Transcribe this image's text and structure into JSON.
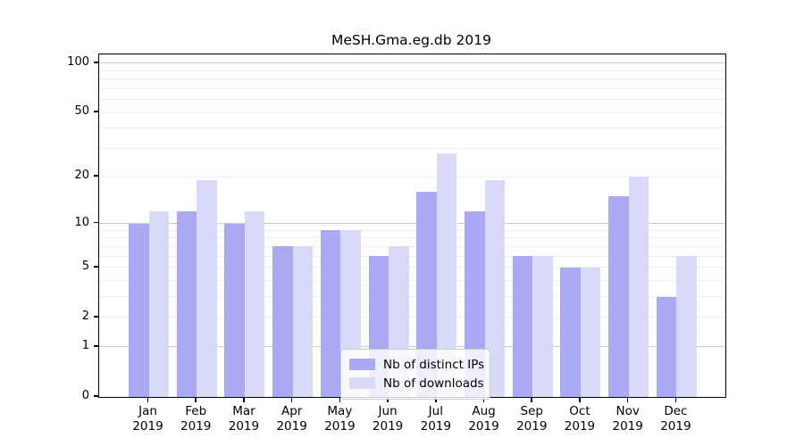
{
  "chart_data": {
    "type": "bar",
    "title": "MeSH.Gma.eg.db 2019",
    "categories": [
      "Jan",
      "Feb",
      "Mar",
      "Apr",
      "May",
      "Jun",
      "Jul",
      "Aug",
      "Sep",
      "Oct",
      "Nov",
      "Dec"
    ],
    "xtick_year": "2019",
    "series": [
      {
        "name": "Nb of distinct IPs",
        "color": "#a9a9f4",
        "values": [
          10,
          12,
          10,
          7,
          9,
          6,
          16,
          12,
          6,
          5,
          15,
          3
        ]
      },
      {
        "name": "Nb of downloads",
        "color": "#d9d9f8",
        "values": [
          12,
          19,
          12,
          7,
          9,
          7,
          28,
          19,
          6,
          5,
          20,
          6
        ]
      }
    ],
    "xlabel": "",
    "ylabel": "",
    "yscale": "log1p",
    "ylim": [
      0,
      113
    ],
    "yticks": [
      100,
      50,
      20,
      10,
      5,
      2,
      1,
      0
    ],
    "gridlines_major": [
      1,
      10,
      100
    ],
    "gridlines_minor": [
      2,
      3,
      4,
      5,
      6,
      7,
      8,
      9,
      20,
      30,
      40,
      50,
      60,
      70,
      80,
      90
    ],
    "grid": true,
    "legend_position": "lower-center-inside"
  },
  "colors": {
    "background": "#ffffff",
    "axis": "#000000",
    "grid_major": "#c9c9c9",
    "grid_minor": "#ededed",
    "text": "#000000",
    "legend_border": "#cccccc"
  }
}
